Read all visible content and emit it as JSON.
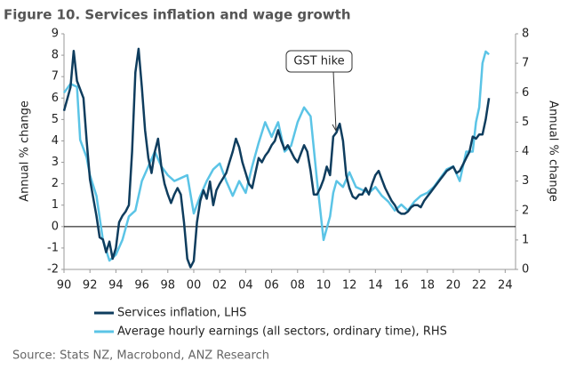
{
  "chart_data": {
    "type": "line",
    "title": "Figure 10. Services inflation and wage growth",
    "ylabel": "Annual % change",
    "y2label": "Annual % change",
    "source": "Source: Stats NZ, Macrobond, ANZ Research",
    "annotation": "GST hike",
    "xlim": [
      1990,
      2024.8
    ],
    "xticks": [
      {
        "value": 1990,
        "label": "90"
      },
      {
        "value": 1992,
        "label": "92"
      },
      {
        "value": 1994,
        "label": "94"
      },
      {
        "value": 1996,
        "label": "96"
      },
      {
        "value": 1998,
        "label": "98"
      },
      {
        "value": 2000,
        "label": "00"
      },
      {
        "value": 2002,
        "label": "02"
      },
      {
        "value": 2004,
        "label": "04"
      },
      {
        "value": 2006,
        "label": "06"
      },
      {
        "value": 2008,
        "label": "08"
      },
      {
        "value": 2010,
        "label": "10"
      },
      {
        "value": 2012,
        "label": "12"
      },
      {
        "value": 2014,
        "label": "14"
      },
      {
        "value": 2016,
        "label": "16"
      },
      {
        "value": 2018,
        "label": "18"
      },
      {
        "value": 2020,
        "label": "20"
      },
      {
        "value": 2022,
        "label": "22"
      },
      {
        "value": 2024,
        "label": "24"
      }
    ],
    "ylim": [
      -2,
      9
    ],
    "yticks": [
      -2,
      -1,
      0,
      1,
      2,
      3,
      4,
      5,
      6,
      7,
      8,
      9
    ],
    "y2lim": [
      0,
      8
    ],
    "y2ticks": [
      0,
      1,
      2,
      3,
      4,
      5,
      6,
      7,
      8
    ],
    "grid": false,
    "legend": "bottom",
    "series": [
      {
        "name": "Services inflation, LHS",
        "color": "#0f3d5e",
        "x": [
          1990,
          1990.5,
          1990.75,
          1991,
          1991.5,
          1991.75,
          1992,
          1992.5,
          1992.75,
          1993,
          1993.25,
          1993.5,
          1993.75,
          1994,
          1994.25,
          1994.5,
          1994.75,
          1995,
          1995.25,
          1995.5,
          1995.75,
          1996,
          1996.25,
          1996.5,
          1996.75,
          1997,
          1997.25,
          1997.5,
          1997.75,
          1998,
          1998.25,
          1998.5,
          1998.75,
          1999,
          1999.25,
          1999.5,
          1999.75,
          2000,
          2000.25,
          2000.5,
          2000.75,
          2001,
          2001.25,
          2001.5,
          2001.75,
          2002,
          2002.5,
          2002.75,
          2003,
          2003.25,
          2003.5,
          2003.75,
          2004,
          2004.25,
          2004.5,
          2004.75,
          2005,
          2005.25,
          2005.5,
          2005.75,
          2006,
          2006.25,
          2006.5,
          2006.75,
          2007,
          2007.25,
          2007.5,
          2007.75,
          2008,
          2008.25,
          2008.5,
          2008.75,
          2009,
          2009.25,
          2009.5,
          2009.75,
          2010,
          2010.25,
          2010.5,
          2010.75,
          2011,
          2011.25,
          2011.5,
          2011.75,
          2012,
          2012.25,
          2012.5,
          2012.75,
          2013,
          2013.25,
          2013.5,
          2013.75,
          2014,
          2014.25,
          2014.5,
          2014.75,
          2015,
          2015.25,
          2015.5,
          2015.75,
          2016,
          2016.25,
          2016.5,
          2016.75,
          2017,
          2017.25,
          2017.5,
          2017.75,
          2018,
          2018.25,
          2018.5,
          2018.75,
          2019,
          2019.25,
          2019.5,
          2019.75,
          2020,
          2020.25,
          2020.5,
          2020.75,
          2021,
          2021.25,
          2021.5,
          2021.75,
          2022,
          2022.25,
          2022.5,
          2022.75
        ],
        "values": [
          5.4,
          6.5,
          8.2,
          6.8,
          6.0,
          4.0,
          2.2,
          0.5,
          -0.5,
          -0.6,
          -1.2,
          -0.7,
          -1.5,
          -1.0,
          0.2,
          0.5,
          0.7,
          1.0,
          3.5,
          7.2,
          8.3,
          6.5,
          4.5,
          3.2,
          2.5,
          3.5,
          4.1,
          2.8,
          2.0,
          1.5,
          1.1,
          1.5,
          1.8,
          1.5,
          0.2,
          -1.5,
          -1.9,
          -1.6,
          0.2,
          1.2,
          1.7,
          1.3,
          2.1,
          1.0,
          1.7,
          2.0,
          2.5,
          3.0,
          3.5,
          4.1,
          3.7,
          3.0,
          2.5,
          2.0,
          1.8,
          2.5,
          3.2,
          3.0,
          3.3,
          3.5,
          3.8,
          4.0,
          4.5,
          4.0,
          3.6,
          3.8,
          3.5,
          3.2,
          3.0,
          3.4,
          3.8,
          3.5,
          2.6,
          1.5,
          1.5,
          1.8,
          2.2,
          2.8,
          2.4,
          4.2,
          4.4,
          4.8,
          4.0,
          2.4,
          1.8,
          1.4,
          1.3,
          1.5,
          1.5,
          1.8,
          1.5,
          2.0,
          2.4,
          2.6,
          2.2,
          1.8,
          1.5,
          1.2,
          1.0,
          0.7,
          0.6,
          0.6,
          0.7,
          0.9,
          1.0,
          1.0,
          0.9,
          1.2,
          1.4,
          1.6,
          1.8,
          2.0,
          2.2,
          2.4,
          2.6,
          2.7,
          2.8,
          2.5,
          2.6,
          2.9,
          3.2,
          3.5,
          4.2,
          4.1,
          4.3,
          4.3,
          5.0,
          6.0
        ]
      },
      {
        "name": "Average hourly earnings (all sectors, ordinary time), RHS",
        "color": "#5bc4e6",
        "axis": "y2",
        "x": [
          1990,
          1990.5,
          1991,
          1991.25,
          1991.75,
          1992,
          1992.5,
          1993,
          1993.5,
          1994,
          1994.5,
          1995,
          1995.5,
          1996,
          1996.5,
          1997,
          1997.5,
          1998,
          1998.5,
          1999,
          1999.5,
          2000,
          2000.5,
          2001,
          2001.5,
          2002,
          2002.5,
          2003,
          2003.5,
          2004,
          2004.5,
          2005,
          2005.5,
          2006,
          2006.5,
          2007,
          2007.5,
          2008,
          2008.5,
          2009,
          2009.5,
          2010,
          2010.5,
          2010.75,
          2011,
          2011.5,
          2012,
          2012.5,
          2013,
          2013.5,
          2014,
          2014.5,
          2015,
          2015.5,
          2016,
          2016.5,
          2017,
          2017.5,
          2018,
          2018.5,
          2019,
          2019.5,
          2020,
          2020.5,
          2021,
          2021.5,
          2021.75,
          2022,
          2022.25,
          2022.5,
          2022.75
        ],
        "values": [
          6.0,
          6.3,
          6.2,
          4.4,
          3.8,
          3.2,
          2.5,
          1.0,
          0.3,
          0.5,
          1.0,
          1.8,
          2.0,
          3.0,
          3.5,
          4.0,
          3.5,
          3.2,
          3.0,
          3.1,
          3.2,
          1.9,
          2.5,
          3.0,
          3.4,
          3.6,
          3.0,
          2.5,
          3.0,
          2.6,
          3.5,
          4.3,
          5.0,
          4.5,
          5.0,
          4.0,
          4.2,
          5.0,
          5.5,
          5.2,
          3.0,
          1.0,
          1.8,
          2.6,
          3.0,
          2.8,
          3.3,
          2.8,
          2.7,
          2.6,
          2.8,
          2.5,
          2.3,
          2.0,
          2.2,
          2.0,
          2.3,
          2.5,
          2.6,
          2.8,
          3.1,
          3.4,
          3.5,
          3.0,
          4.0,
          4.0,
          5.0,
          5.5,
          7.0,
          7.4,
          7.3
        ]
      }
    ]
  }
}
